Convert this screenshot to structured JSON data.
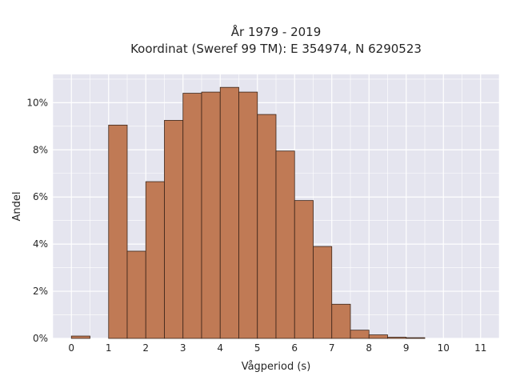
{
  "chart_data": {
    "type": "bar",
    "title_lines": [
      "År 1979 - 2019",
      "Koordinat (Sweref 99 TM): E 354974, N 6290523"
    ],
    "xlabel": "Vågperiod (s)",
    "ylabel": "Andel",
    "xlim": [
      -0.5,
      11.5
    ],
    "ylim": [
      0,
      11.2
    ],
    "bin_width": 0.5,
    "x_ticks": [
      0,
      1,
      2,
      3,
      4,
      5,
      6,
      7,
      8,
      9,
      10,
      11
    ],
    "y_ticks": [
      0,
      2,
      4,
      6,
      8,
      10
    ],
    "y_tick_suffix": "%",
    "grid": true,
    "bar_color": "#c07a55",
    "bar_edge_color": "#3a2418",
    "bins": [
      {
        "x": 0.0,
        "value": 0.1
      },
      {
        "x": 1.0,
        "value": 9.05
      },
      {
        "x": 1.5,
        "value": 3.7
      },
      {
        "x": 2.0,
        "value": 6.65
      },
      {
        "x": 2.5,
        "value": 9.25
      },
      {
        "x": 3.0,
        "value": 10.4
      },
      {
        "x": 3.5,
        "value": 10.45
      },
      {
        "x": 4.0,
        "value": 10.65
      },
      {
        "x": 4.5,
        "value": 10.45
      },
      {
        "x": 5.0,
        "value": 9.5
      },
      {
        "x": 5.5,
        "value": 7.95
      },
      {
        "x": 6.0,
        "value": 5.85
      },
      {
        "x": 6.5,
        "value": 3.9
      },
      {
        "x": 7.0,
        "value": 1.45
      },
      {
        "x": 7.5,
        "value": 0.35
      },
      {
        "x": 8.0,
        "value": 0.15
      },
      {
        "x": 8.5,
        "value": 0.05
      },
      {
        "x": 9.0,
        "value": 0.03
      }
    ]
  }
}
